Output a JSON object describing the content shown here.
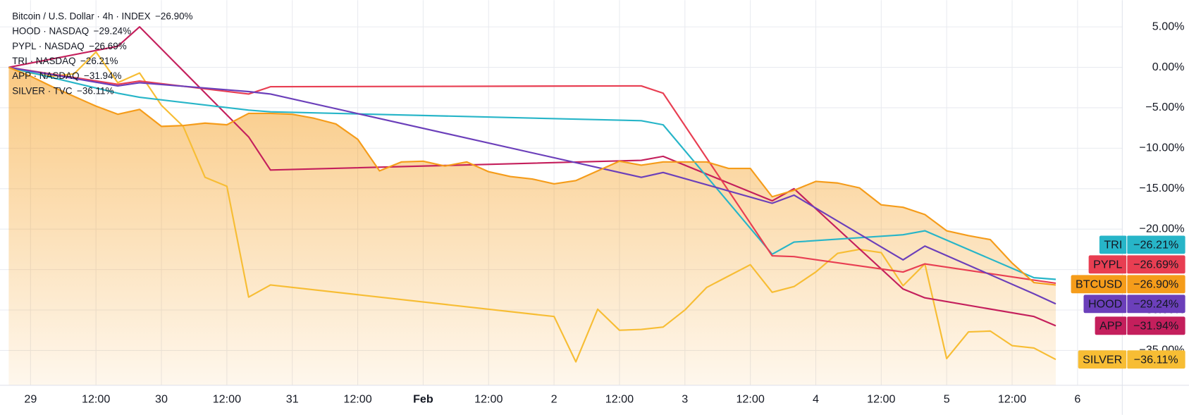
{
  "chart_data": {
    "type": "line",
    "grid": true,
    "xlim": [
      -5.6,
      200.2
    ],
    "xticks": [
      {
        "value": 0,
        "label": "29"
      },
      {
        "value": 12,
        "label": "12:00"
      },
      {
        "value": 24,
        "label": "30"
      },
      {
        "value": 36,
        "label": "12:00"
      },
      {
        "value": 48,
        "label": "31"
      },
      {
        "value": 60,
        "label": "12:00"
      },
      {
        "value": 72,
        "label": "Feb"
      },
      {
        "value": 84,
        "label": "12:00"
      },
      {
        "value": 96,
        "label": "2"
      },
      {
        "value": 108,
        "label": "12:00"
      },
      {
        "value": 120,
        "label": "3"
      },
      {
        "value": 132,
        "label": "12:00"
      },
      {
        "value": 144,
        "label": "4"
      },
      {
        "value": 156,
        "label": "12:00"
      },
      {
        "value": 168,
        "label": "5"
      },
      {
        "value": 180,
        "label": "12:00"
      },
      {
        "value": 192,
        "label": "6"
      }
    ],
    "ylim": [
      -39.3,
      8.3
    ],
    "yticks": [
      {
        "value": 5,
        "label": "5.00%"
      },
      {
        "value": 0,
        "label": "0.00%"
      },
      {
        "value": -5,
        "label": "−5.00%"
      },
      {
        "value": -10,
        "label": "−10.00%"
      },
      {
        "value": -15,
        "label": "−15.00%"
      },
      {
        "value": -20,
        "label": "−20.00%"
      },
      {
        "value": -25,
        "label": "−25.00%"
      },
      {
        "value": -30,
        "label": "−30.00%"
      },
      {
        "value": -35,
        "label": "−35.00%"
      }
    ],
    "series": [
      {
        "name": "BTCUSD",
        "legend": "Bitcoin / U.S. Dollar · 4h · INDEX",
        "color": "#f59c1a",
        "area": true,
        "x": [
          -4,
          0,
          4,
          8,
          12,
          16,
          20,
          24,
          28,
          32,
          36,
          40,
          44,
          48,
          52,
          56,
          60,
          64,
          68,
          72,
          76,
          80,
          84,
          88,
          92,
          96,
          100,
          104,
          108,
          112,
          116,
          120,
          124,
          128,
          132,
          136,
          140,
          144,
          148,
          152,
          156,
          160,
          164,
          168,
          172,
          176,
          180,
          184,
          188
        ],
        "values": [
          0,
          -1.1,
          -2.4,
          -3.6,
          -4.8,
          -5.8,
          -5.2,
          -7.3,
          -7.2,
          -6.9,
          -7.1,
          -5.7,
          -5.7,
          -5.8,
          -6.3,
          -7.0,
          -8.9,
          -12.8,
          -11.7,
          -11.6,
          -12.2,
          -11.7,
          -12.9,
          -13.5,
          -13.8,
          -14.4,
          -14.0,
          -12.8,
          -11.6,
          -12.1,
          -11.7,
          -11.7,
          -11.7,
          -12.5,
          -12.5,
          -16.0,
          -15.2,
          -14.1,
          -14.3,
          -14.9,
          -17.0,
          -17.3,
          -18.2,
          -20.2,
          -20.8,
          -21.3,
          -24.2,
          -26.6,
          -26.9
        ],
        "value_labels": [
          null,
          null,
          null,
          null,
          null,
          null,
          null,
          null,
          null,
          null,
          null,
          null,
          null,
          null,
          null,
          null,
          null,
          null,
          null,
          null,
          null,
          null,
          null,
          null,
          null,
          null,
          null,
          null,
          null,
          null,
          null,
          null,
          null,
          null,
          null,
          null,
          null,
          null,
          null,
          null,
          null,
          null,
          null,
          null,
          null,
          null,
          null,
          null,
          "−26.90%"
        ]
      },
      {
        "name": "HOOD",
        "legend": "HOOD · NASDAQ",
        "color": "#6b3fba",
        "x": [
          -4,
          16,
          20,
          40,
          44,
          112,
          116,
          136,
          140,
          160,
          164,
          184,
          188
        ],
        "values": [
          0,
          -2.3,
          -1.9,
          -3.0,
          -3.3,
          -13.6,
          -13.0,
          -16.8,
          -15.8,
          -23.8,
          -22.1,
          -28.0,
          -29.24
        ],
        "value_labels": [
          null,
          null,
          null,
          null,
          null,
          null,
          null,
          null,
          null,
          null,
          null,
          null,
          "−29.24%"
        ]
      },
      {
        "name": "PYPL",
        "legend": "PYPL · NASDAQ",
        "color": "#e83e52",
        "x": [
          -4,
          16,
          20,
          40,
          44,
          112,
          116,
          136,
          140,
          160,
          164,
          184,
          188
        ],
        "values": [
          0,
          -2.1,
          -1.7,
          -3.3,
          -2.4,
          -2.3,
          -3.2,
          -23.3,
          -23.4,
          -25.3,
          -24.3,
          -26.3,
          -26.69
        ],
        "value_labels": [
          null,
          null,
          null,
          null,
          null,
          null,
          null,
          null,
          null,
          null,
          null,
          null,
          "−26.69%"
        ]
      },
      {
        "name": "TRI",
        "legend": "TRI · NASDAQ",
        "color": "#27b5c8",
        "x": [
          -4,
          16,
          20,
          40,
          44,
          112,
          116,
          136,
          140,
          160,
          164,
          184,
          188
        ],
        "values": [
          0,
          -3.2,
          -3.7,
          -5.3,
          -5.5,
          -6.6,
          -7.1,
          -23.1,
          -21.6,
          -20.7,
          -20.2,
          -26.0,
          -26.21
        ],
        "value_labels": [
          null,
          null,
          null,
          null,
          null,
          null,
          null,
          null,
          null,
          null,
          null,
          null,
          "−26.21%"
        ]
      },
      {
        "name": "APP",
        "legend": "APP · NASDAQ",
        "color": "#c41f5c",
        "x": [
          -4,
          16,
          20,
          40,
          44,
          112,
          116,
          136,
          140,
          160,
          164,
          184,
          188
        ],
        "values": [
          0,
          2.6,
          5.0,
          -8.6,
          -12.7,
          -11.5,
          -11.0,
          -16.5,
          -15.0,
          -27.4,
          -28.5,
          -30.8,
          -31.94
        ],
        "value_labels": [
          null,
          null,
          null,
          null,
          null,
          null,
          null,
          null,
          null,
          null,
          null,
          null,
          "−31.94%"
        ]
      },
      {
        "name": "SILVER",
        "legend": "SILVER · TVC",
        "color": "#f7bd34",
        "x": [
          -4,
          0,
          4,
          8,
          12,
          16,
          20,
          24,
          28,
          32,
          36,
          40,
          44,
          96,
          100,
          104,
          108,
          112,
          116,
          120,
          124,
          128,
          132,
          136,
          140,
          144,
          148,
          152,
          156,
          160,
          164,
          168,
          172,
          176,
          180,
          184,
          188
        ],
        "values": [
          0,
          -0.7,
          -1.1,
          -0.8,
          1.9,
          -1.9,
          -0.7,
          -4.7,
          -7.3,
          -13.6,
          -14.7,
          -28.4,
          -26.9,
          -30.8,
          -36.4,
          -29.9,
          -32.5,
          -32.4,
          -32.1,
          -30.0,
          -27.2,
          -25.8,
          -24.4,
          -27.8,
          -27.1,
          -25.3,
          -23.0,
          -22.5,
          -22.9,
          -27.0,
          -24.3,
          -36.0,
          -32.7,
          -32.6,
          -34.4,
          -34.7,
          -36.11
        ],
        "value_labels": [
          null,
          null,
          null,
          null,
          null,
          null,
          null,
          null,
          null,
          null,
          null,
          null,
          null,
          null,
          null,
          null,
          null,
          null,
          null,
          null,
          null,
          null,
          null,
          null,
          null,
          null,
          null,
          null,
          null,
          null,
          null,
          null,
          null,
          null,
          null,
          null,
          "−36.11%"
        ]
      }
    ]
  }
}
